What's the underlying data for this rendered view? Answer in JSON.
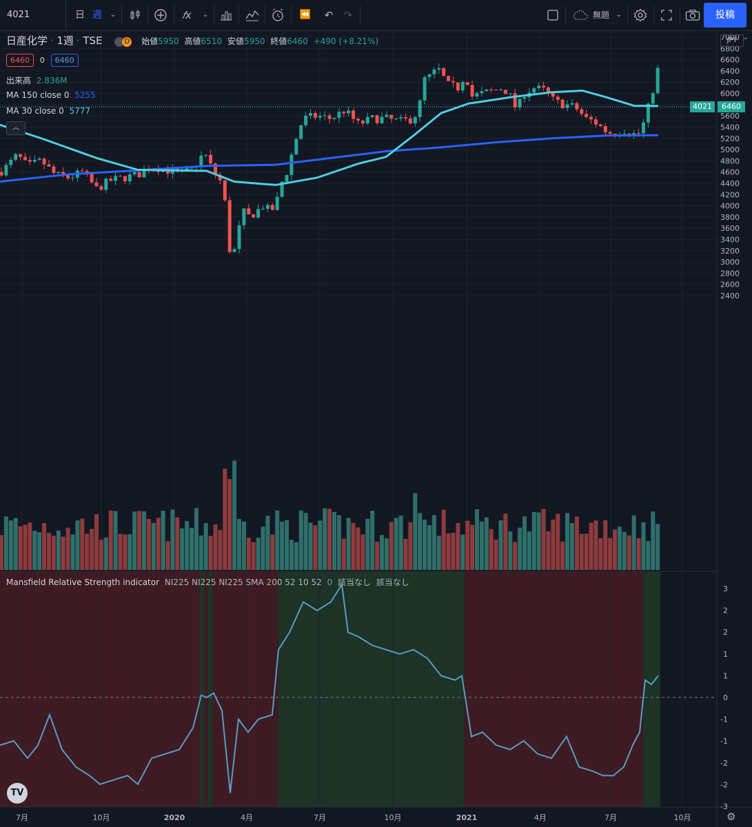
{
  "toolbar": {
    "symbol": "4021",
    "interval_day": "日",
    "interval_week": "週",
    "layout_name": "無題",
    "publish_label": "投稿"
  },
  "legend": {
    "title": "日産化学",
    "interval": "1週",
    "exchange": "TSE",
    "badge": "D",
    "open_label": "始値",
    "open": "5950",
    "high_label": "高値",
    "high": "6510",
    "low_label": "安値",
    "low": "5950",
    "close_label": "終値",
    "close": "6460",
    "change": "+490 (+8.21%)",
    "bid": "6460",
    "spread": "0",
    "ask": "6460",
    "volume_label": "出来高",
    "volume": "2.836M",
    "ma150_label": "MA 150 close 0",
    "ma150_value": "5255",
    "ma30_label": "MA 30 close 0",
    "ma30_value": "5777"
  },
  "indicator": {
    "name": "Mansfield Relative Strength indicator",
    "params": "NI225 NI225 NI225 SMA 200 52 10 52",
    "value": "0",
    "na1": "該当なし",
    "na2": "該当なし"
  },
  "price_axis": {
    "currency": "JPY",
    "ticks": [
      "7000",
      "6800",
      "6600",
      "6400",
      "6200",
      "6000",
      "5800",
      "5600",
      "5400",
      "5200",
      "5000",
      "4800",
      "4600",
      "4400",
      "4200",
      "4000",
      "3800",
      "3600",
      "3400",
      "3200",
      "3000",
      "2800",
      "2600",
      "2400"
    ],
    "symbol_tag": "4021",
    "last_price": "6460"
  },
  "ind_axis": {
    "ticks": [
      "3",
      "2",
      "2",
      "1",
      "1",
      "0",
      "-1",
      "-1",
      "-2",
      "-2",
      "-3"
    ]
  },
  "time_axis": {
    "ticks": [
      "7月",
      "10月",
      "2020",
      "4月",
      "7月",
      "10月",
      "2021",
      "4月",
      "7月",
      "10月"
    ]
  },
  "colors": {
    "up": "#26a69a",
    "down": "#ef5350",
    "ma150": "#2962ff",
    "ma30": "#4dd0e1",
    "rs_line": "#5b9cc4",
    "rs_red_bg": "#3e1b22",
    "rs_green_bg": "#1c3326"
  },
  "chart_data": {
    "type": "candlestick",
    "interval": "weekly",
    "last_bar": {
      "open": 5950,
      "high": 6510,
      "low": 5950,
      "close": 6460,
      "change": 490,
      "change_pct": 8.21
    },
    "ma150_last": 5255,
    "ma30_last": 5777,
    "volume_last": "2.836M",
    "y_range": [
      2300,
      7000
    ],
    "rs_range": [
      -3,
      3
    ]
  }
}
